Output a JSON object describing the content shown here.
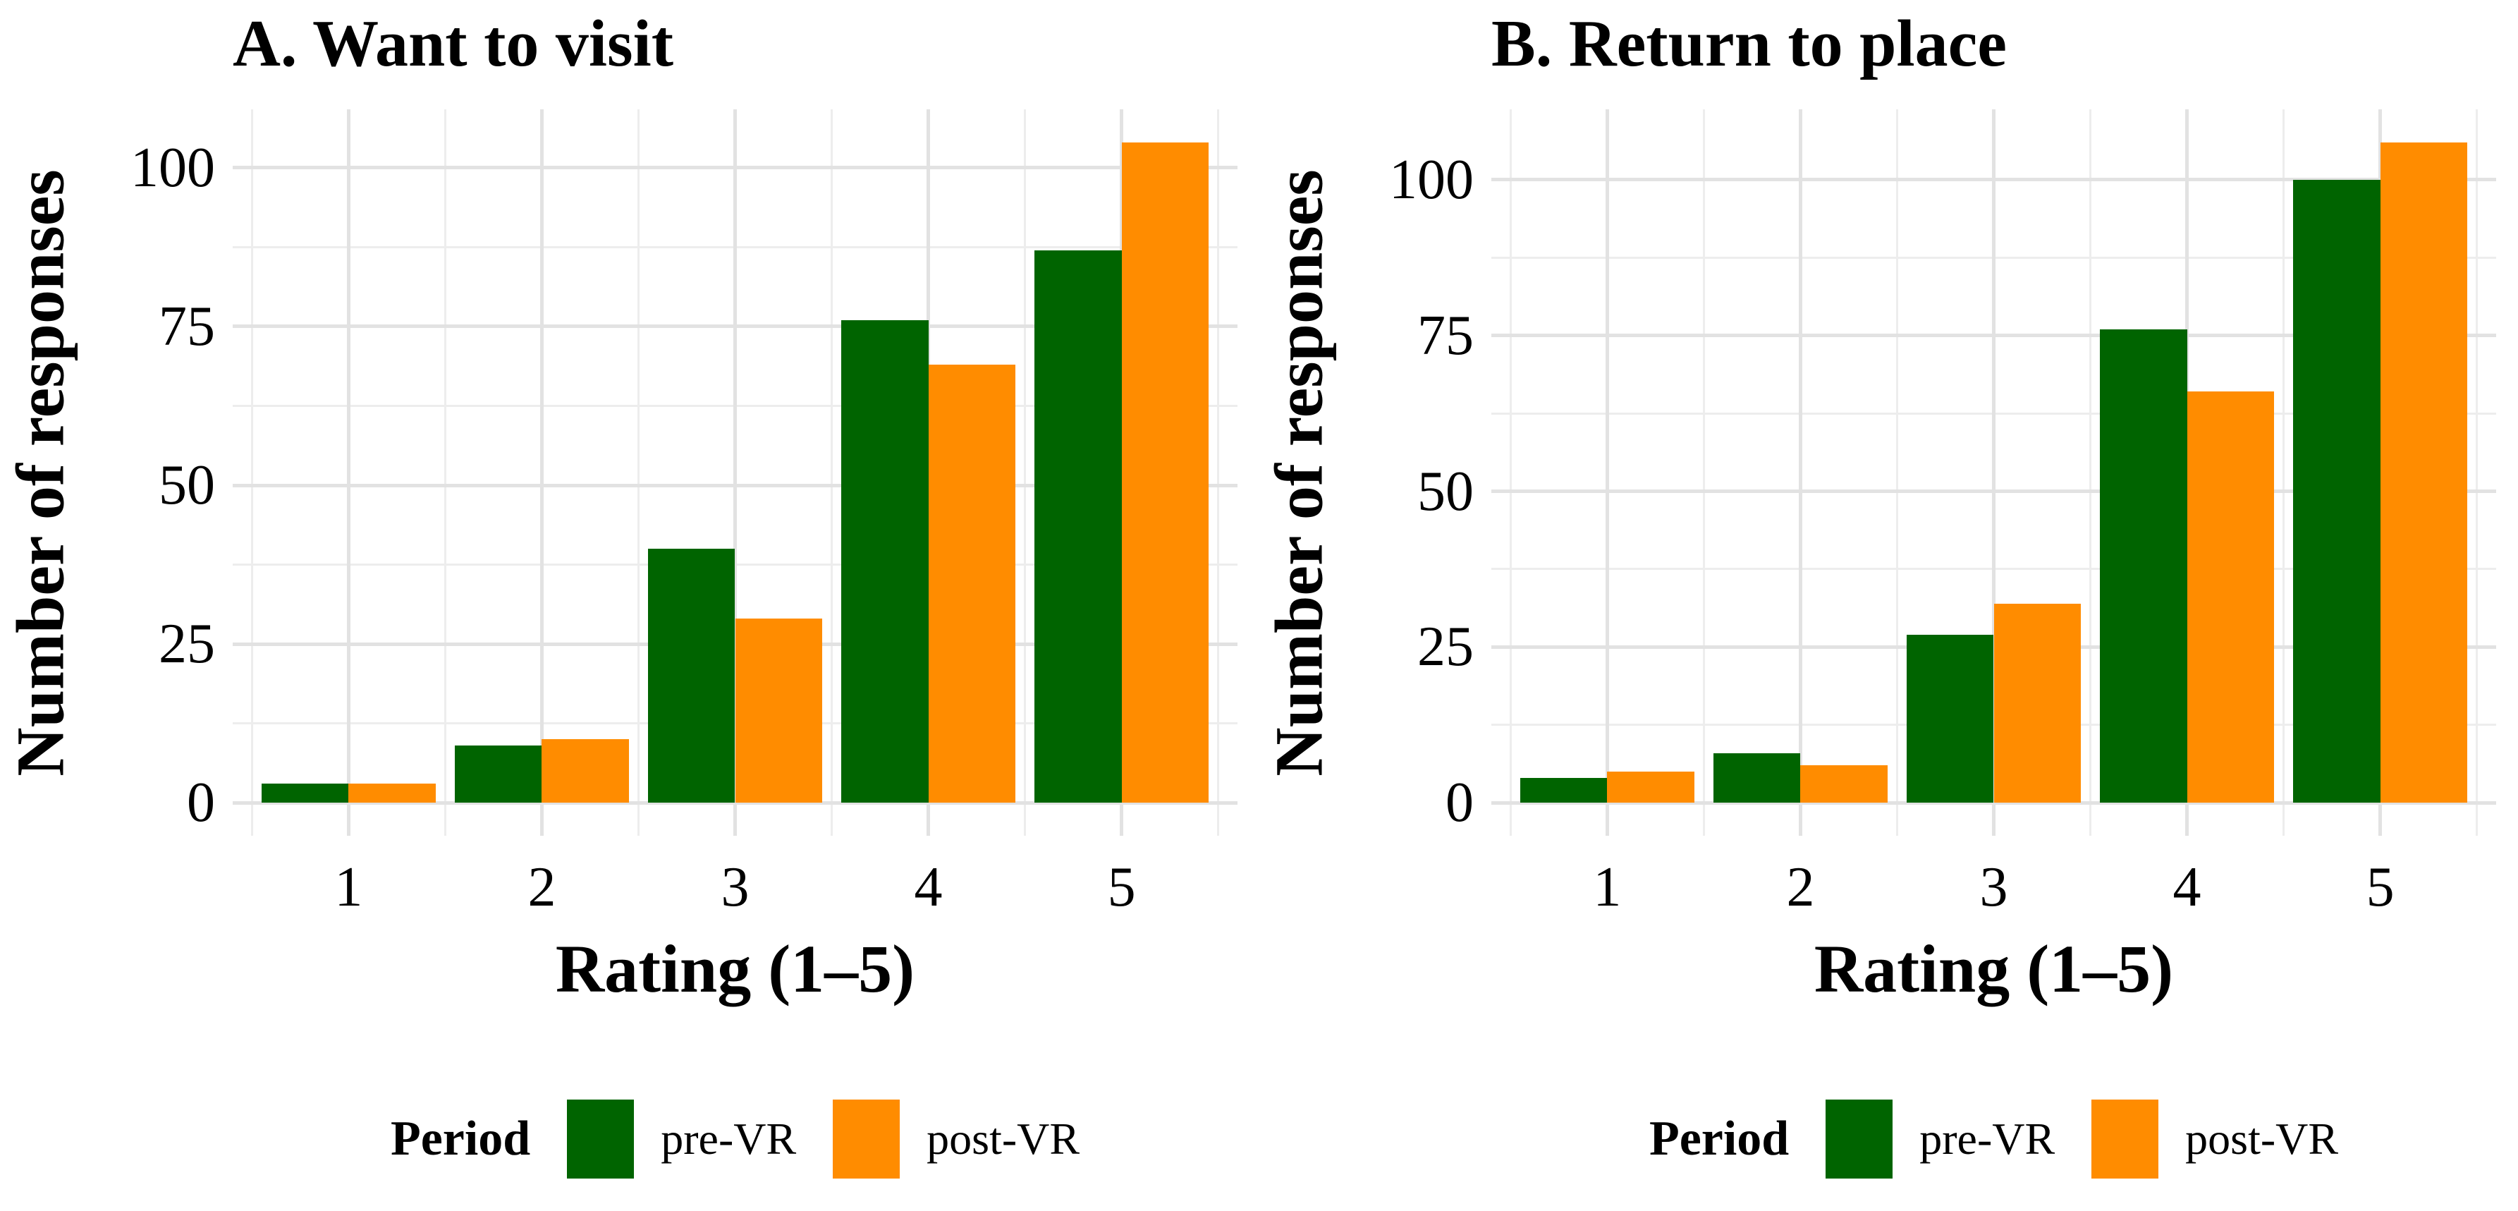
{
  "page": {
    "background": "#FFFFFF"
  },
  "colors": {
    "pre_vr": "#006400",
    "post_vr": "#FF8C00",
    "grid_major": "#E2E2E2",
    "grid_minor": "#EDEDED",
    "text": "#000000"
  },
  "legend": {
    "title": "Period",
    "items": [
      {
        "label": "pre-VR",
        "color_key": "pre_vr"
      },
      {
        "label": "post-VR",
        "color_key": "post_vr"
      }
    ],
    "position": "bottom-center"
  },
  "chart_data": [
    {
      "type": "bar",
      "panel": "A",
      "title": "A. Want to visit",
      "xlabel": "Rating (1–5)",
      "ylabel": "Number of responses",
      "categories": [
        "1",
        "2",
        "3",
        "4",
        "5"
      ],
      "series": [
        {
          "name": "pre-VR",
          "color_key": "pre_vr",
          "values": [
            3,
            9,
            40,
            76,
            87
          ]
        },
        {
          "name": "post-VR",
          "color_key": "post_vr",
          "values": [
            3,
            10,
            29,
            69,
            104
          ]
        }
      ],
      "yticks": [
        0,
        25,
        50,
        75,
        100
      ],
      "ylim": [
        0,
        110
      ],
      "grid": true,
      "bar_layout": "dodged"
    },
    {
      "type": "bar",
      "panel": "B",
      "title": "B. Return to place",
      "xlabel": "Rating (1–5)",
      "ylabel": "Number of responses",
      "categories": [
        "1",
        "2",
        "3",
        "4",
        "5"
      ],
      "series": [
        {
          "name": "pre-VR",
          "color_key": "pre_vr",
          "values": [
            4,
            8,
            27,
            76,
            100
          ]
        },
        {
          "name": "post-VR",
          "color_key": "post_vr",
          "values": [
            5,
            6,
            32,
            66,
            106
          ]
        }
      ],
      "yticks": [
        0,
        25,
        50,
        75,
        100
      ],
      "ylim": [
        0,
        111
      ],
      "grid": true,
      "bar_layout": "dodged"
    }
  ]
}
